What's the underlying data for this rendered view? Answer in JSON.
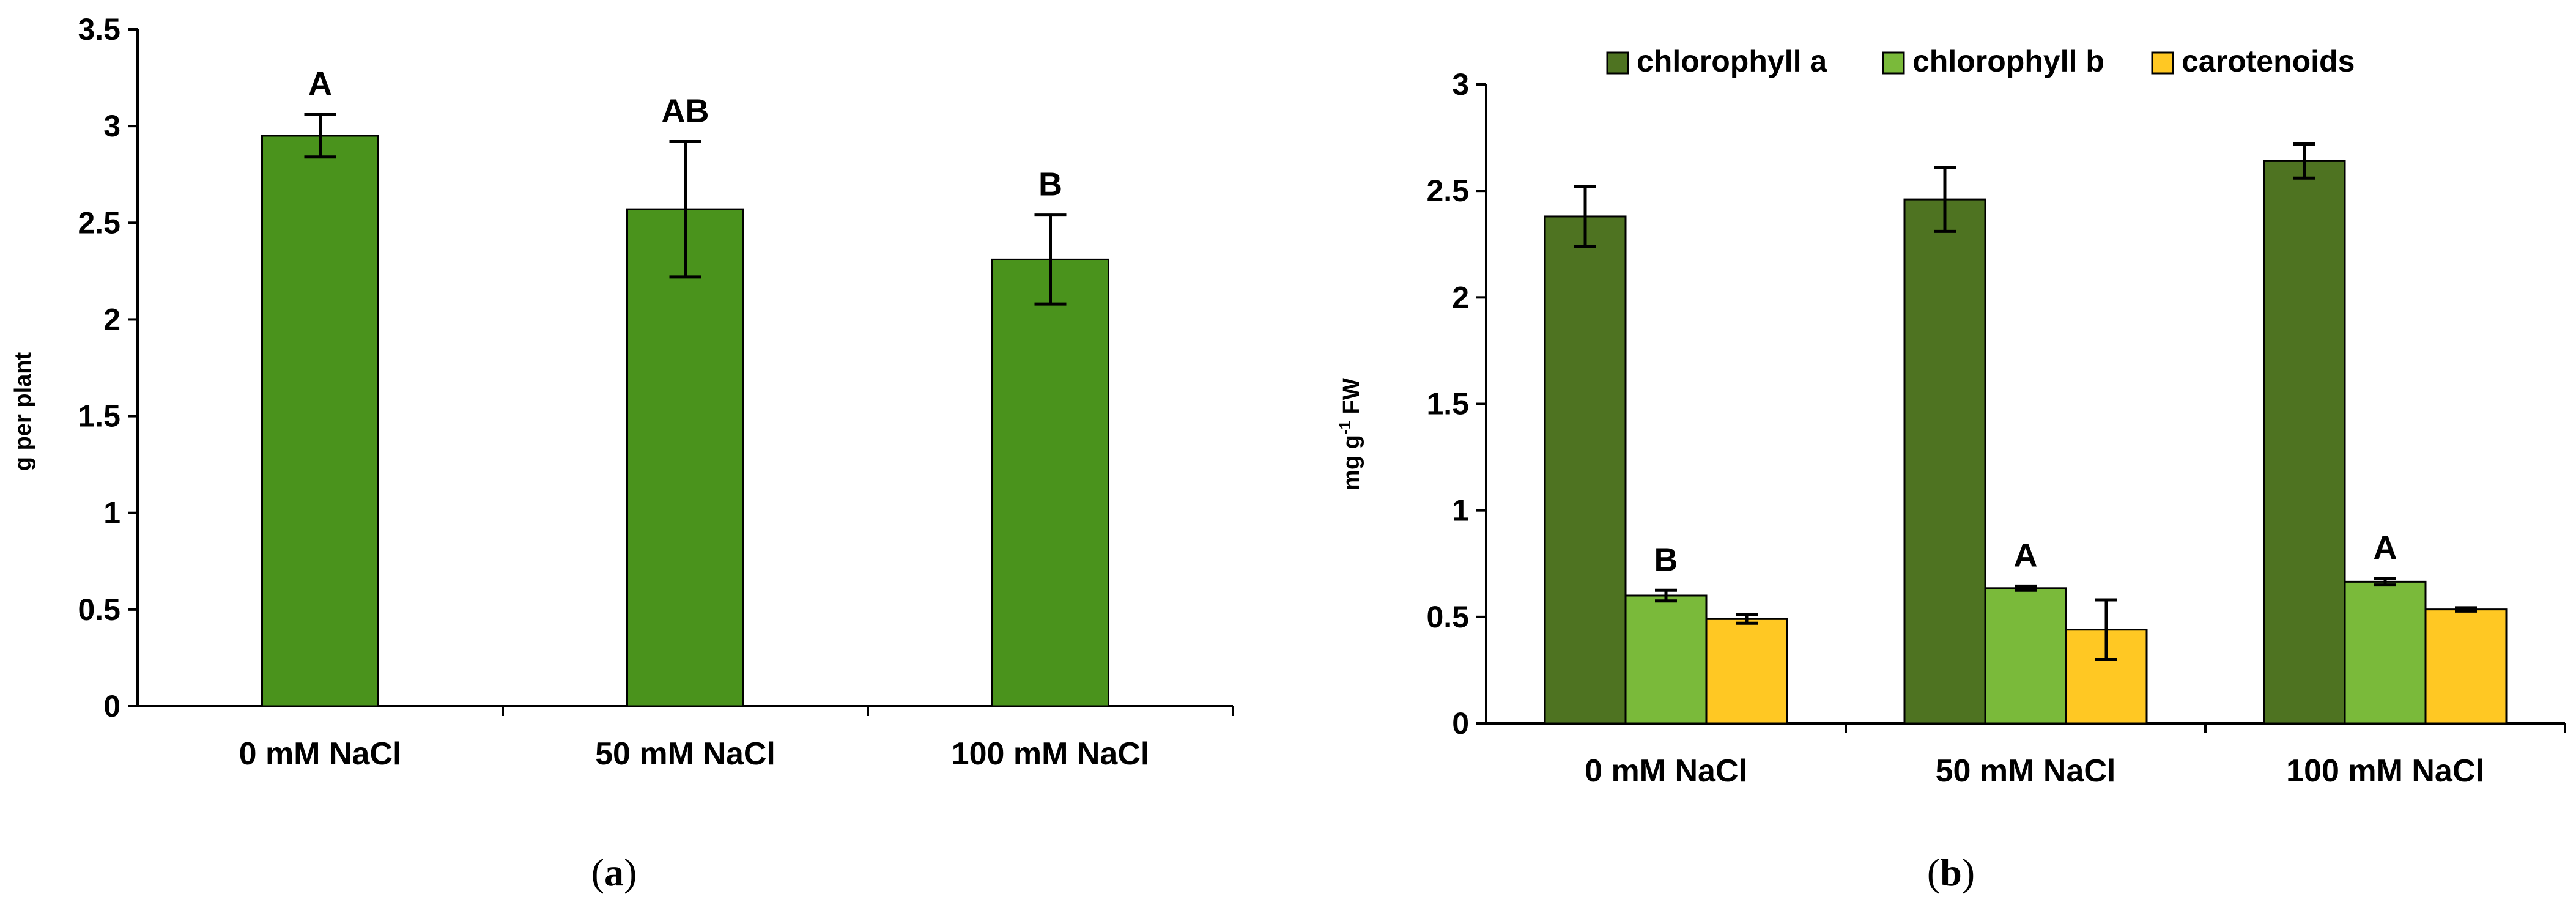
{
  "figure_labels": {
    "a_open": "(",
    "a_letter": "a",
    "a_close": ")",
    "b_open": "(",
    "b_letter": "b",
    "b_close": ")"
  },
  "chart_data": [
    {
      "type": "bar",
      "panel": "a",
      "ylabel": "g per plant",
      "xlabel": "",
      "ylim": [
        0,
        3.5
      ],
      "yticks": [
        0,
        0.5,
        1,
        1.5,
        2,
        2.5,
        3,
        3.5
      ],
      "ytick_labels": [
        "0",
        "0.5",
        "1",
        "1.5",
        "2",
        "2.5",
        "3",
        "3.5"
      ],
      "categories": [
        "0 mM NaCl",
        "50 mM NaCl",
        "100 mM NaCl"
      ],
      "series": [
        {
          "name": "",
          "color": "#4a931c",
          "values": [
            2.95,
            2.57,
            2.31
          ],
          "errors": [
            0.11,
            0.35,
            0.23
          ],
          "significance": [
            "A",
            "AB",
            "B"
          ]
        }
      ],
      "grid": false,
      "legend": "none"
    },
    {
      "type": "bar",
      "panel": "b",
      "ylabel_main": "mg g",
      "ylabel_sup": "-1",
      "ylabel_unit": " FW",
      "xlabel": "",
      "ylim": [
        0,
        3
      ],
      "yticks": [
        0,
        0.5,
        1,
        1.5,
        2,
        2.5,
        3
      ],
      "ytick_labels": [
        "0",
        "0.5",
        "1",
        "1.5",
        "2",
        "2.5",
        "3"
      ],
      "categories": [
        "0 mM NaCl",
        "50 mM NaCl",
        "100 mM NaCl"
      ],
      "series": [
        {
          "name": "chlorophyll a",
          "color": "#4e7321",
          "values": [
            2.38,
            2.46,
            2.64
          ],
          "errors": [
            0.14,
            0.15,
            0.08
          ],
          "significance": [
            "",
            "",
            ""
          ]
        },
        {
          "name": "chlorophyll b",
          "color": "#7aba3a",
          "values": [
            0.6,
            0.635,
            0.665
          ],
          "errors": [
            0.025,
            0.01,
            0.015
          ],
          "significance": [
            "B",
            "A",
            "A"
          ]
        },
        {
          "name": "carotenoids",
          "color": "#ffc823",
          "values": [
            0.49,
            0.44,
            0.535
          ],
          "errors": [
            0.02,
            0.14,
            0.008
          ],
          "significance": [
            "",
            "",
            ""
          ]
        }
      ],
      "grid": false,
      "legend": "top"
    }
  ]
}
